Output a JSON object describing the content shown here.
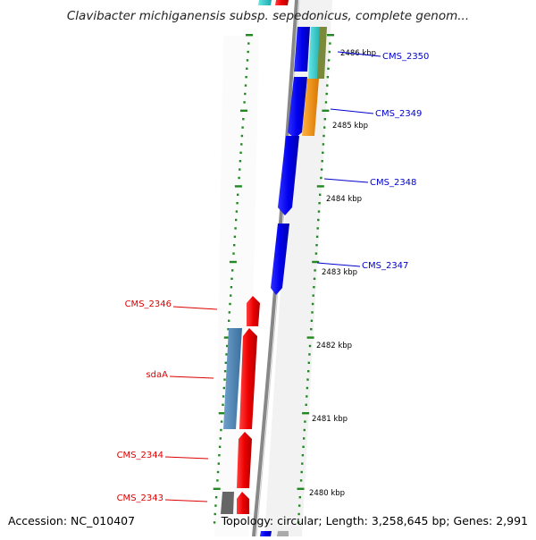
{
  "title": "Clavibacter michiganensis subsp. sepedonicus, complete genom...",
  "footer": {
    "accession": "Accession: NC_010407",
    "summary": "Topology: circular; Length: 3,258,645 bp; Genes: 2,991"
  },
  "kbp_ticks": [
    "2486 kbp",
    "2485 kbp",
    "2484 kbp",
    "2483 kbp",
    "2482 kbp",
    "2481 kbp",
    "2480 kbp"
  ],
  "forward_genes": [
    "CMS_2350",
    "CMS_2349",
    "CMS_2348",
    "CMS_2347"
  ],
  "reverse_genes": [
    "CMS_2346",
    "sdaA",
    "CMS_2344",
    "CMS_2343"
  ],
  "colors": {
    "forward_cds": "#0000ee",
    "reverse_cds": "#ee0000",
    "cyan_feature": "#22cccc",
    "orange_feature": "#ff9900",
    "steel_feature": "#4a82b4",
    "olive_feature": "#7a8a3a",
    "grey_feature": "#666666",
    "backbone": "#888888",
    "tick_dots": "#228822"
  }
}
